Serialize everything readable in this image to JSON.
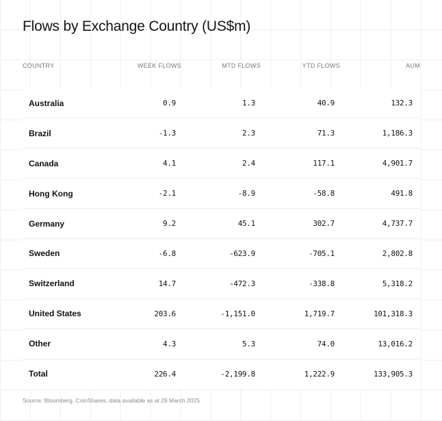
{
  "title": "Flows by Exchange Country (US$m)",
  "columns": {
    "country": "COUNTRY",
    "week": "WEEK FLOWS",
    "mtd": "MTD FLOWS",
    "ytd": "YTD FLOWS",
    "aum": "AUM"
  },
  "rows": [
    {
      "country": "Australia",
      "week": "0.9",
      "mtd": "1.3",
      "ytd": "40.9",
      "aum": "132.3"
    },
    {
      "country": "Brazil",
      "week": "-1.3",
      "mtd": "2.3",
      "ytd": "71.3",
      "aum": "1,186.3"
    },
    {
      "country": "Canada",
      "week": "4.1",
      "mtd": "2.4",
      "ytd": "117.1",
      "aum": "4,901.7"
    },
    {
      "country": "Hong Kong",
      "week": "-2.1",
      "mtd": "-8.9",
      "ytd": "-58.8",
      "aum": "491.8"
    },
    {
      "country": "Germany",
      "week": "9.2",
      "mtd": "45.1",
      "ytd": "302.7",
      "aum": "4,737.7"
    },
    {
      "country": "Sweden",
      "week": "-6.8",
      "mtd": "-623.9",
      "ytd": "-705.1",
      "aum": "2,802.8"
    },
    {
      "country": "Switzerland",
      "week": "14.7",
      "mtd": "-472.3",
      "ytd": "-338.8",
      "aum": "5,318.2"
    },
    {
      "country": "United States",
      "week": "203.6",
      "mtd": "-1,151.0",
      "ytd": "1,719.7",
      "aum": "101,318.3"
    },
    {
      "country": "Other",
      "week": "4.3",
      "mtd": "5.3",
      "ytd": "74.0",
      "aum": "13,016.2"
    },
    {
      "country": "Total",
      "week": "226.4",
      "mtd": "-2,199.8",
      "ytd": "1,222.9",
      "aum": "133,905.3"
    }
  ],
  "source": "Source: Bloomberg, CoinShares, data available as at 29 March 2025"
}
